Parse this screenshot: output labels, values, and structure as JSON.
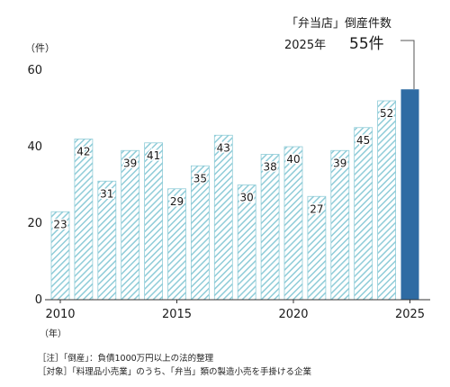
{
  "chart_data": {
    "type": "bar",
    "x": [
      2010,
      2011,
      2012,
      2013,
      2014,
      2015,
      2016,
      2017,
      2018,
      2019,
      2020,
      2021,
      2022,
      2023,
      2024,
      2025
    ],
    "values": [
      23,
      42,
      31,
      39,
      41,
      29,
      35,
      43,
      30,
      38,
      40,
      27,
      39,
      45,
      52,
      55
    ],
    "data_labels": [
      "23",
      "42",
      "31",
      "39",
      "41",
      "29",
      "35",
      "43",
      "30",
      "38",
      "40",
      "27",
      "39",
      "45",
      "52",
      ""
    ],
    "highlight_index": 15,
    "ylim": [
      0,
      60
    ],
    "yticks": [
      0,
      20,
      40,
      60
    ],
    "xticks": [
      "2010",
      "2015",
      "2020",
      "2025"
    ],
    "yunit": "（件）",
    "xunit": "（年）",
    "grid": false,
    "colors": {
      "bar_fill": "#ffffff",
      "bar_hatch": "#8fccd8",
      "highlight": "#2f6ba3",
      "axis": "#333333"
    },
    "callout": {
      "title": "「弁当店」倒産件数",
      "year_text": "2025年",
      "value_text": "55件"
    }
  },
  "notes": [
    "［注］「倒産」：負債1000万円以上の法的整理",
    "［対象］「料理品小売業」のうち、「弁当」類の製造小売を手掛ける企業"
  ]
}
